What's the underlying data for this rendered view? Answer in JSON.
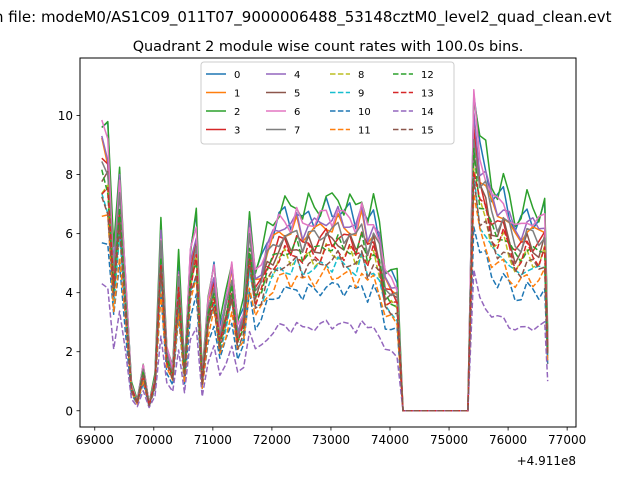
{
  "figure": {
    "suptitle": "n file: modeM0/AS1C09_011T07_9000006488_53148cztM0_level2_quad_clean.evt",
    "title": "Quadrant 2 module wise count rates with 100.0s bins.",
    "offset_label": "+4.911e8"
  },
  "chart_data": {
    "type": "line",
    "title": "Quadrant 2 module wise count rates with 100.0s bins.",
    "xlabel": "",
    "ylabel": "",
    "x_offset": 491100000,
    "xlim": [
      68750,
      77150
    ],
    "ylim": [
      -0.55,
      11.95
    ],
    "xticks": [
      69000,
      70000,
      71000,
      72000,
      73000,
      74000,
      75000,
      76000,
      77000
    ],
    "xtick_labels": [
      "69000",
      "70000",
      "71000",
      "72000",
      "73000",
      "74000",
      "75000",
      "76000",
      "77000"
    ],
    "yticks": [
      0,
      2,
      4,
      6,
      8,
      10
    ],
    "ytick_labels": [
      "0",
      "2",
      "4",
      "6",
      "8",
      "10"
    ],
    "grid": false,
    "legend_position": "top-center",
    "legend_columns": 4,
    "envelope": {
      "x": [
        69120,
        69220,
        69320,
        69420,
        69520,
        69620,
        69720,
        69820,
        69920,
        70020,
        70120,
        70220,
        70320,
        70420,
        70520,
        70620,
        70720,
        70820,
        70920,
        71020,
        71120,
        71220,
        71320,
        71420,
        71520,
        71620,
        71720,
        71820,
        71920,
        72020,
        72120,
        72220,
        72320,
        72420,
        72520,
        72620,
        72720,
        72820,
        72920,
        73020,
        73120,
        73220,
        73320,
        73420,
        73520,
        73620,
        73720,
        73820,
        73920,
        74020,
        74120,
        74220,
        74320,
        74420,
        74520,
        74620,
        74720,
        74820,
        74920,
        75020,
        75120,
        75220,
        75320,
        75420,
        75520,
        75620,
        75720,
        75820,
        75920,
        76020,
        76120,
        76220,
        76320,
        76420,
        76520,
        76620,
        76670
      ],
      "base": [
        9.9,
        9.6,
        5.2,
        8.2,
        4.6,
        0.95,
        0.35,
        1.6,
        0.25,
        1.2,
        6.3,
        2.2,
        1.5,
        5.1,
        1.5,
        5.5,
        6.6,
        1.2,
        3.9,
        5.0,
        2.9,
        3.9,
        5.1,
        3.0,
        3.6,
        6.6,
        4.8,
        5.2,
        6.0,
        6.3,
        6.7,
        6.9,
        6.6,
        7.0,
        6.5,
        6.9,
        6.7,
        6.8,
        7.1,
        6.9,
        7.1,
        6.8,
        7.0,
        6.6,
        7.2,
        6.4,
        6.9,
        6.2,
        4.8,
        4.7,
        4.5,
        0,
        0,
        0,
        0,
        0,
        0,
        0,
        0,
        0,
        0,
        0,
        0,
        10.9,
        9.0,
        8.6,
        7.6,
        7.3,
        7.6,
        7.0,
        6.4,
        6.5,
        7.0,
        6.7,
        6.6,
        7.0,
        2.5
      ]
    },
    "series": [
      {
        "name": "0",
        "color": "#1f77b4",
        "dash": "solid",
        "scale": 0.97
      },
      {
        "name": "1",
        "color": "#ff7f0e",
        "dash": "solid",
        "scale": 0.9
      },
      {
        "name": "2",
        "color": "#2ca02c",
        "dash": "solid",
        "scale": 1.02
      },
      {
        "name": "3",
        "color": "#d62728",
        "dash": "solid",
        "scale": 0.84
      },
      {
        "name": "4",
        "color": "#9467bd",
        "dash": "solid",
        "scale": 0.93
      },
      {
        "name": "5",
        "color": "#8c564b",
        "dash": "solid",
        "scale": 0.82
      },
      {
        "name": "6",
        "color": "#e377c2",
        "dash": "solid",
        "scale": 0.95
      },
      {
        "name": "7",
        "color": "#7f7f7f",
        "dash": "solid",
        "scale": 0.87
      },
      {
        "name": "8",
        "color": "#bcbd22",
        "dash": "dashed",
        "scale": 0.76
      },
      {
        "name": "9",
        "color": "#17becf",
        "dash": "dashed",
        "scale": 0.71
      },
      {
        "name": "10",
        "color": "#1f77b4",
        "dash": "dashed",
        "scale": 0.6
      },
      {
        "name": "11",
        "color": "#ff7f0e",
        "dash": "dashed",
        "scale": 0.66
      },
      {
        "name": "12",
        "color": "#2ca02c",
        "dash": "dashed",
        "scale": 0.8
      },
      {
        "name": "13",
        "color": "#d62728",
        "dash": "dashed",
        "scale": 0.78
      },
      {
        "name": "14",
        "color": "#9467bd",
        "dash": "dashed",
        "scale": 0.42
      },
      {
        "name": "15",
        "color": "#8c564b",
        "dash": "dashed",
        "scale": 0.73
      }
    ]
  }
}
